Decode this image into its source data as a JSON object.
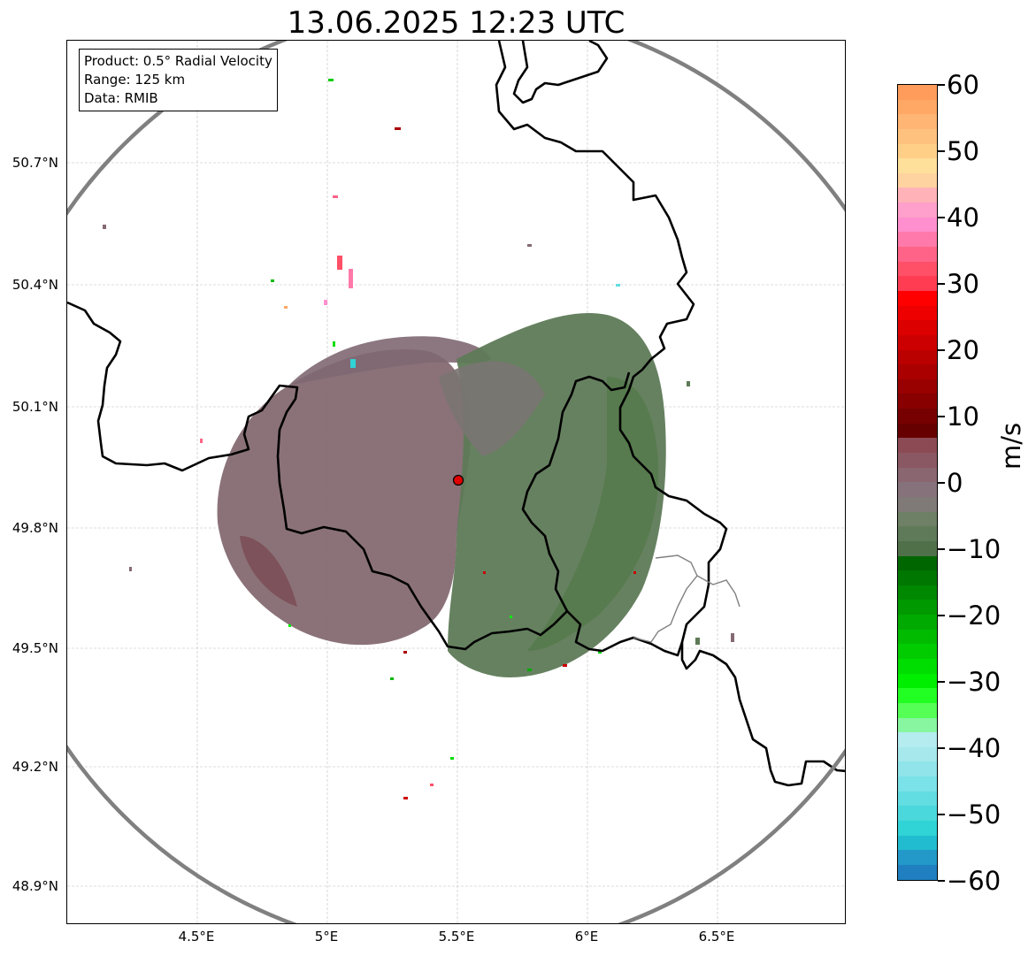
{
  "title": "13.06.2025 12:23 UTC",
  "info": {
    "line1": "Product: 0.5° Radial Velocity",
    "line2": "Range: 125 km",
    "line3": "Data: RMIB"
  },
  "axes": {
    "lat_labels": [
      "50.7°N",
      "50.4°N",
      "50.1°N",
      "49.8°N",
      "49.5°N",
      "49.2°N",
      "48.9°N"
    ],
    "lon_labels": [
      "4.5°E",
      "5°E",
      "5.5°E",
      "6°E",
      "6.5°E"
    ]
  },
  "colorbar": {
    "unit": "m/s",
    "ticks": [
      "60",
      "50",
      "40",
      "30",
      "20",
      "10",
      "0",
      "−10",
      "−20",
      "−30",
      "−40",
      "−50",
      "−60"
    ],
    "range": [
      -60,
      60
    ],
    "colors_top_to_bottom": [
      "#ff9c5c",
      "#ffa866",
      "#ffb574",
      "#ffc27e",
      "#ffcf88",
      "#ffe09a",
      "#ffd3a0",
      "#ffb3b8",
      "#ff9fcb",
      "#ff8fcf",
      "#ff7aaa",
      "#ff6488",
      "#ff5068",
      "#ff3c52",
      "#ff0000",
      "#ee0000",
      "#dd0000",
      "#cc0000",
      "#bb0000",
      "#aa0000",
      "#990000",
      "#880000",
      "#770000",
      "#660000",
      "#8c4a54",
      "#8a5862",
      "#8a6670",
      "#86727a",
      "#7f7a78",
      "#6e8066",
      "#5f7a58",
      "#4f7048",
      "#006600",
      "#007700",
      "#008800",
      "#009900",
      "#00aa00",
      "#00bb00",
      "#00cc00",
      "#00dd00",
      "#00ee00",
      "#22ff22",
      "#55ff55",
      "#88f5a0",
      "#b4ecf0",
      "#a6e8ec",
      "#90e4ea",
      "#7ae2e8",
      "#62dde2",
      "#4ad8dc",
      "#30d3d6",
      "#22bcd0",
      "#2299c8",
      "#1f7fc0"
    ]
  },
  "map_colors": {
    "inbound_dominant": "#5e7a57",
    "outbound_dominant": "#856a72",
    "range_ring": "#808080",
    "border": "#000000",
    "radar_site": "#e00000"
  }
}
